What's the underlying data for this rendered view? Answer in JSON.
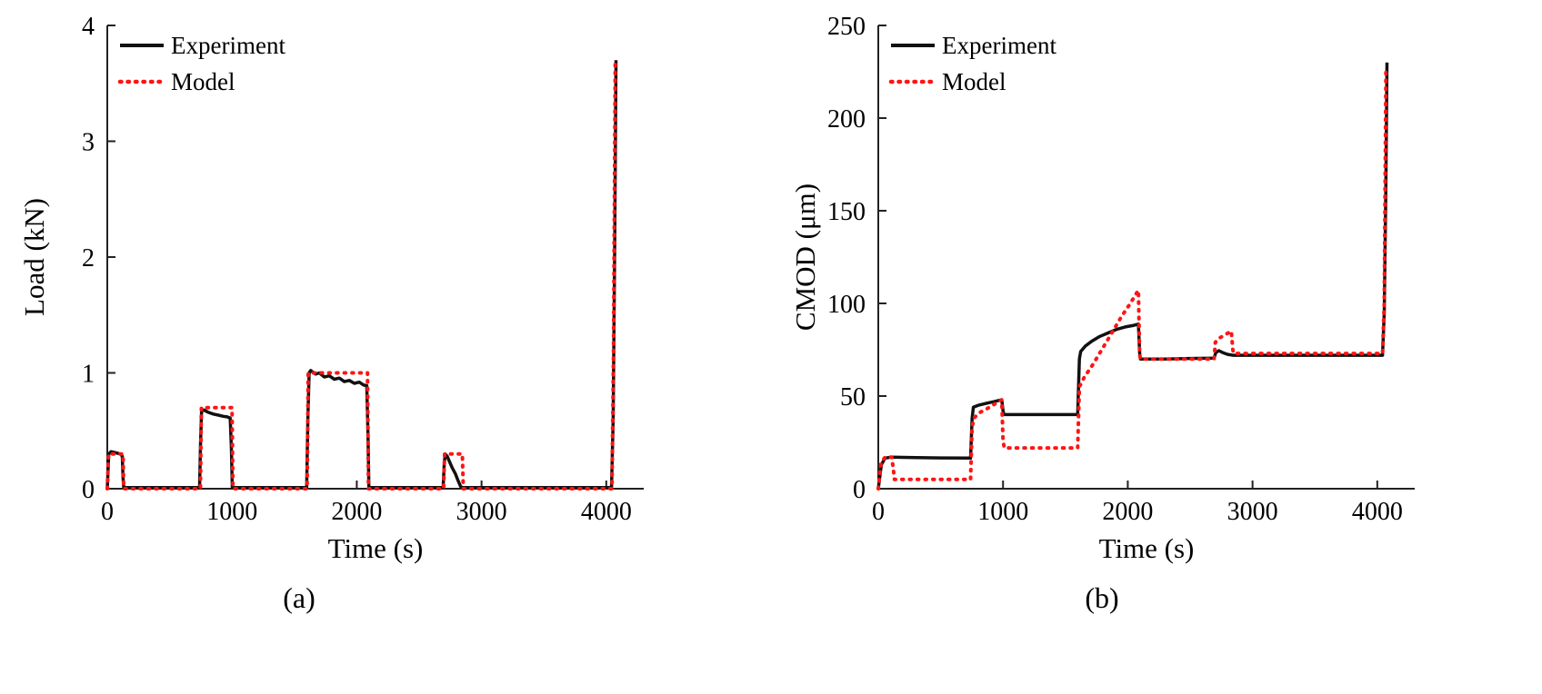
{
  "figure": {
    "background": "#ffffff"
  },
  "captions": {
    "a": "(a)",
    "b": "(b)"
  },
  "colors": {
    "experiment": "#111111",
    "model": "#ff1414",
    "axis": "#222222"
  },
  "chart_data": [
    {
      "id": "chart-a",
      "type": "line",
      "title": "",
      "xlabel": "Time (s)",
      "ylabel": "Load (kN)",
      "xlim": [
        0,
        4300
      ],
      "ylim": [
        0,
        4
      ],
      "xticks": [
        0,
        1000,
        2000,
        3000,
        4000
      ],
      "yticks": [
        0,
        1,
        2,
        3,
        4
      ],
      "grid": false,
      "legend": {
        "position": "top-left",
        "entries": [
          "Experiment",
          "Model"
        ]
      },
      "series": [
        {
          "name": "Experiment",
          "color": "#111111",
          "style": "solid",
          "width": 3.5,
          "points": [
            [
              0,
              0
            ],
            [
              12,
              0.3
            ],
            [
              30,
              0.32
            ],
            [
              70,
              0.31
            ],
            [
              105,
              0.3
            ],
            [
              120,
              0.28
            ],
            [
              126,
              0.1
            ],
            [
              132,
              0.01
            ],
            [
              300,
              0.01
            ],
            [
              600,
              0.01
            ],
            [
              740,
              0.01
            ],
            [
              748,
              0.4
            ],
            [
              756,
              0.67
            ],
            [
              775,
              0.68
            ],
            [
              810,
              0.66
            ],
            [
              850,
              0.645
            ],
            [
              890,
              0.635
            ],
            [
              930,
              0.625
            ],
            [
              960,
              0.62
            ],
            [
              985,
              0.61
            ],
            [
              995,
              0.35
            ],
            [
              1002,
              0.01
            ],
            [
              1200,
              0.01
            ],
            [
              1400,
              0.01
            ],
            [
              1598,
              0.01
            ],
            [
              1608,
              0.6
            ],
            [
              1618,
              1.0
            ],
            [
              1630,
              1.02
            ],
            [
              1670,
              0.99
            ],
            [
              1700,
              1.0
            ],
            [
              1740,
              0.965
            ],
            [
              1780,
              0.975
            ],
            [
              1820,
              0.945
            ],
            [
              1860,
              0.955
            ],
            [
              1900,
              0.925
            ],
            [
              1940,
              0.935
            ],
            [
              1980,
              0.91
            ],
            [
              2020,
              0.92
            ],
            [
              2055,
              0.895
            ],
            [
              2080,
              0.89
            ],
            [
              2090,
              0.45
            ],
            [
              2097,
              0.01
            ],
            [
              2300,
              0.01
            ],
            [
              2500,
              0.01
            ],
            [
              2692,
              0.01
            ],
            [
              2700,
              0.2
            ],
            [
              2708,
              0.3
            ],
            [
              2725,
              0.28
            ],
            [
              2745,
              0.23
            ],
            [
              2765,
              0.18
            ],
            [
              2790,
              0.13
            ],
            [
              2812,
              0.07
            ],
            [
              2832,
              0.02
            ],
            [
              2845,
              0.01
            ],
            [
              3100,
              0.01
            ],
            [
              3500,
              0.01
            ],
            [
              3900,
              0.01
            ],
            [
              4042,
              0.01
            ],
            [
              4055,
              0.6
            ],
            [
              4068,
              2.2
            ],
            [
              4078,
              3.7
            ]
          ]
        },
        {
          "name": "Model",
          "color": "#ff1414",
          "style": "dotted",
          "width": 4,
          "points": [
            [
              0,
              0
            ],
            [
              10,
              0.3
            ],
            [
              126,
              0.3
            ],
            [
              132,
              0.0
            ],
            [
              500,
              0.0
            ],
            [
              746,
              0.0
            ],
            [
              754,
              0.7
            ],
            [
              1000,
              0.7
            ],
            [
              1007,
              0.0
            ],
            [
              1300,
              0.0
            ],
            [
              1602,
              0.0
            ],
            [
              1611,
              1.0
            ],
            [
              2086,
              1.0
            ],
            [
              2094,
              0.0
            ],
            [
              2400,
              0.0
            ],
            [
              2696,
              0.0
            ],
            [
              2704,
              0.3
            ],
            [
              2846,
              0.3
            ],
            [
              2854,
              0.0
            ],
            [
              3200,
              0.0
            ],
            [
              3700,
              0.0
            ],
            [
              4046,
              0.0
            ],
            [
              4058,
              1.2
            ],
            [
              4072,
              3.7
            ]
          ]
        }
      ]
    },
    {
      "id": "chart-b",
      "type": "line",
      "title": "",
      "xlabel": "Time (s)",
      "ylabel": "CMOD (μm)",
      "xlim": [
        0,
        4300
      ],
      "ylim": [
        0,
        250
      ],
      "xticks": [
        0,
        1000,
        2000,
        3000,
        4000
      ],
      "yticks": [
        0,
        50,
        100,
        150,
        200,
        250
      ],
      "grid": false,
      "legend": {
        "position": "top-left",
        "entries": [
          "Experiment",
          "Model"
        ]
      },
      "series": [
        {
          "name": "Experiment",
          "color": "#111111",
          "style": "solid",
          "width": 3.5,
          "points": [
            [
              0,
              0
            ],
            [
              25,
              13
            ],
            [
              55,
              16.5
            ],
            [
              100,
              17
            ],
            [
              300,
              16.8
            ],
            [
              500,
              16.6
            ],
            [
              740,
              16.5
            ],
            [
              752,
              38
            ],
            [
              762,
              44
            ],
            [
              800,
              45
            ],
            [
              860,
              46
            ],
            [
              930,
              47
            ],
            [
              990,
              48
            ],
            [
              1000,
              42
            ],
            [
              1008,
              40
            ],
            [
              1200,
              40
            ],
            [
              1400,
              40
            ],
            [
              1598,
              40
            ],
            [
              1612,
              70
            ],
            [
              1622,
              74
            ],
            [
              1660,
              77
            ],
            [
              1710,
              79.5
            ],
            [
              1770,
              82
            ],
            [
              1840,
              84
            ],
            [
              1910,
              86
            ],
            [
              1980,
              87.3
            ],
            [
              2050,
              88.2
            ],
            [
              2085,
              88.8
            ],
            [
              2095,
              73
            ],
            [
              2102,
              70
            ],
            [
              2300,
              70
            ],
            [
              2500,
              70.3
            ],
            [
              2692,
              70.5
            ],
            [
              2705,
              73.5
            ],
            [
              2730,
              74.5
            ],
            [
              2760,
              73.5
            ],
            [
              2800,
              72.5
            ],
            [
              2845,
              72
            ],
            [
              3100,
              72
            ],
            [
              3500,
              72
            ],
            [
              3900,
              72
            ],
            [
              4042,
              72
            ],
            [
              4056,
              95
            ],
            [
              4068,
              160
            ],
            [
              4078,
              230
            ]
          ]
        },
        {
          "name": "Model",
          "color": "#ff1414",
          "style": "dotted",
          "width": 4,
          "points": [
            [
              0,
              0
            ],
            [
              22,
              14
            ],
            [
              55,
              17
            ],
            [
              108,
              17
            ],
            [
              122,
              10
            ],
            [
              130,
              5
            ],
            [
              400,
              5
            ],
            [
              740,
              5
            ],
            [
              752,
              33
            ],
            [
              765,
              38
            ],
            [
              810,
              41
            ],
            [
              880,
              43.5
            ],
            [
              940,
              46
            ],
            [
              990,
              48
            ],
            [
              1000,
              26
            ],
            [
              1010,
              22
            ],
            [
              1300,
              22
            ],
            [
              1598,
              22
            ],
            [
              1612,
              55
            ],
            [
              1650,
              60
            ],
            [
              1720,
              67
            ],
            [
              1800,
              76
            ],
            [
              1880,
              85
            ],
            [
              1950,
              93
            ],
            [
              2020,
              100
            ],
            [
              2070,
              105.5
            ],
            [
              2085,
              107
            ],
            [
              2095,
              72
            ],
            [
              2102,
              70
            ],
            [
              2400,
              70
            ],
            [
              2692,
              70
            ],
            [
              2702,
              79
            ],
            [
              2740,
              81.5
            ],
            [
              2790,
              83.5
            ],
            [
              2830,
              85
            ],
            [
              2842,
              75
            ],
            [
              2850,
              73
            ],
            [
              3200,
              73
            ],
            [
              3700,
              73
            ],
            [
              4042,
              73
            ],
            [
              4056,
              100
            ],
            [
              4070,
              228
            ]
          ]
        }
      ]
    }
  ],
  "axis_style": {
    "tick_font_size": 28,
    "label_font_size": 31,
    "legend_font_size": 27
  }
}
